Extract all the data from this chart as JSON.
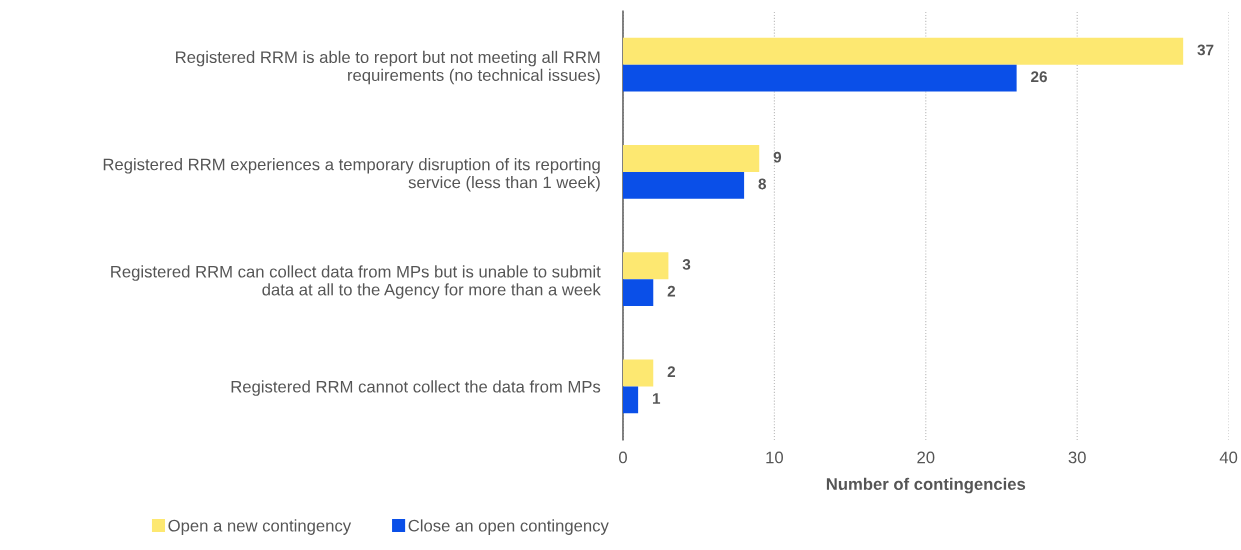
{
  "chart_data": {
    "type": "bar",
    "orientation": "horizontal",
    "xlabel": "Number of contingencies",
    "categories": [
      "Registered RRM is able to report but not meeting all RRM\nrequirements (no technical issues)",
      "Registered RRM experiences a temporary disruption of its reporting\nservice (less than 1 week)",
      "Registered RRM can collect data from MPs but is unable to submit\ndata at all to the Agency for more than a week",
      "Registered RRM cannot collect the data from MPs"
    ],
    "series": [
      {
        "name": "Open a new contingency",
        "color": "#fde871",
        "values": [
          37,
          9,
          3,
          2
        ]
      },
      {
        "name": "Close an open contingency",
        "color": "#0a4fe8",
        "values": [
          26,
          8,
          2,
          1
        ]
      }
    ],
    "xlim": [
      0,
      40
    ],
    "xticks": [
      0,
      10,
      20,
      30,
      40
    ],
    "grid": "x",
    "legend": "bottom",
    "data_labels": true
  }
}
